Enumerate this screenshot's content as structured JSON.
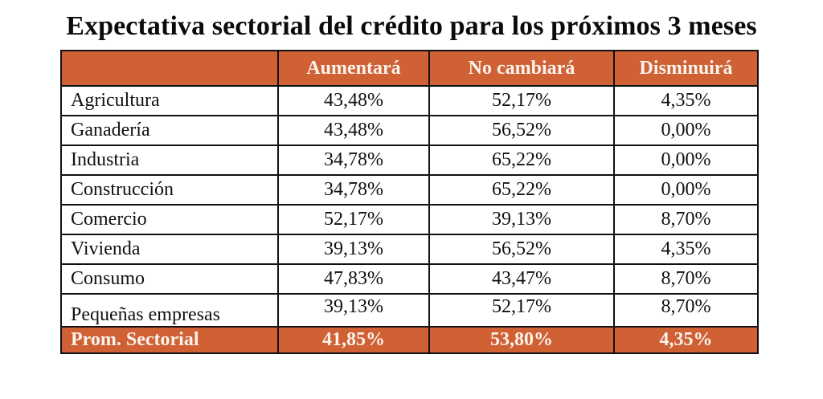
{
  "title": "Expectativa sectorial del crédito para los próximos 3 meses",
  "colors": {
    "header_bg": "#cf6135",
    "header_text": "#fbf3ec",
    "border": "#111111"
  },
  "table": {
    "headers": [
      "",
      "Aumentará",
      "No cambiará",
      "Disminuirá"
    ],
    "rows": [
      {
        "label": "Agricultura",
        "values": [
          "43,48%",
          "52,17%",
          "4,35%"
        ]
      },
      {
        "label": "Ganadería",
        "values": [
          "43,48%",
          "56,52%",
          "0,00%"
        ]
      },
      {
        "label": "Industria",
        "values": [
          "34,78%",
          "65,22%",
          "0,00%"
        ]
      },
      {
        "label": "Construcción",
        "values": [
          "34,78%",
          "65,22%",
          "0,00%"
        ]
      },
      {
        "label": "Comercio",
        "values": [
          "52,17%",
          "39,13%",
          "8,70%"
        ]
      },
      {
        "label": "Vivienda",
        "values": [
          "39,13%",
          "56,52%",
          "4,35%"
        ]
      },
      {
        "label": "Consumo",
        "values": [
          "47,83%",
          "43,47%",
          "8,70%"
        ]
      },
      {
        "label": "Pequeñas empresas",
        "values": [
          "39,13%",
          "52,17%",
          "8,70%"
        ]
      }
    ],
    "footer": {
      "label": "Prom. Sectorial",
      "values": [
        "41,85%",
        "53,80%",
        "4,35%"
      ]
    }
  }
}
